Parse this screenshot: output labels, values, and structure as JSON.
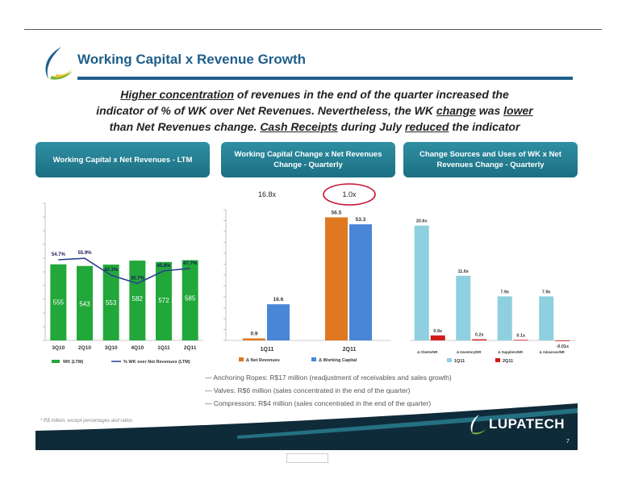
{
  "slide": {
    "title": "Working Capital x Revenue Growth",
    "headline_lines": [
      [
        "Higher concentration",
        " of revenues in the end of the quarter increased the"
      ],
      [
        "indicator of % of WK over Net Revenues. Nevertheless, the WK ",
        "change",
        " was ",
        "lower"
      ],
      [
        "than Net Revenues change. ",
        "Cash Receipts",
        " during July ",
        "reduced",
        " the indicator"
      ]
    ],
    "panel_headers": [
      "Working Capital x Net Revenues - LTM",
      "Working Capital Change x  Net Revenues Change - Quarterly",
      "Change Sources and Uses of WK x Net Revenues Change - Quarterly"
    ],
    "bullets": [
      "— Anchoring Ropes: R$17 million (readjustment of receivables and sales growth)",
      "— Valves: R$6 million (sales concentrated in the end of the quarter)",
      "— Compressors: R$4 million (sales concentrated in the end of the quarter)"
    ],
    "footnote": "* R$ million, except percentages and ratios",
    "brand": "LUPATECH",
    "page_number": "7",
    "colors": {
      "accent": "#1f5f8b",
      "green": "#22a83a",
      "navy": "#2c3e8f",
      "orange": "#e07820",
      "blue": "#4a86d8",
      "lightblue": "#8ecfe0",
      "red": "#d21a1a",
      "band": "#0f2b3a"
    }
  },
  "chart_data": [
    {
      "type": "bar",
      "title": "Working Capital x Net Revenues - LTM",
      "categories": [
        "3Q10",
        "2Q10",
        "3Q10",
        "4Q10",
        "1Q11",
        "2Q11"
      ],
      "series": [
        {
          "name": "WK (LTM)",
          "kind": "bar",
          "values": [
            555,
            543,
            553,
            582,
            572,
            585
          ],
          "value_labels": [
            "555",
            "543",
            "553",
            "582",
            "572",
            "585"
          ]
        },
        {
          "name": "% WK over Net Revenues (LTM)",
          "kind": "line",
          "values": [
            54.7,
            55.9,
            42.3,
            35.7,
            45.8,
            47.7
          ],
          "value_labels": [
            "54.7%",
            "55.9%",
            "42.3%",
            "35.7%",
            "45.8%",
            "47.7%"
          ]
        }
      ],
      "ylim": [
        0,
        1000
      ],
      "y2lim": [
        -10,
        100
      ],
      "legend": "bottom"
    },
    {
      "type": "bar",
      "title": "Working Capital Change x  Net Revenues Change - Quarterly",
      "categories": [
        "1Q11",
        "2Q11"
      ],
      "series": [
        {
          "name": "Δ Net Revenues",
          "values": [
            0.9,
            56.5
          ],
          "value_labels": [
            "0.9",
            "56.5"
          ]
        },
        {
          "name": "Δ Working Capital",
          "values": [
            16.6,
            53.3
          ],
          "value_labels": [
            "16.6",
            "53.3"
          ]
        }
      ],
      "ratios": [
        "16.8x",
        "1.0x"
      ],
      "ylim": [
        0,
        60
      ],
      "legend": "bottom"
    },
    {
      "type": "bar",
      "title": "Change Sources and Uses of WK x Net Revenues Change - Quarterly",
      "categories": [
        "Δ Clients/NR",
        "Δ Inventory/NR",
        "Δ Suppliers/NR",
        "Δ Advances/NR"
      ],
      "series": [
        {
          "name": "1Q11",
          "values": [
            20.6,
            11.6,
            7.9,
            7.9
          ],
          "value_labels": [
            "20.6x",
            "11.6x",
            "7.9x",
            "7.9x"
          ]
        },
        {
          "name": "2Q11",
          "values": [
            0.9,
            0.2,
            0.1,
            -0.01
          ],
          "value_labels": [
            "0.9x",
            "0.2x",
            "0.1x",
            "-0.01x"
          ]
        }
      ],
      "ylim": [
        0,
        22
      ],
      "legend": "bottom"
    }
  ]
}
